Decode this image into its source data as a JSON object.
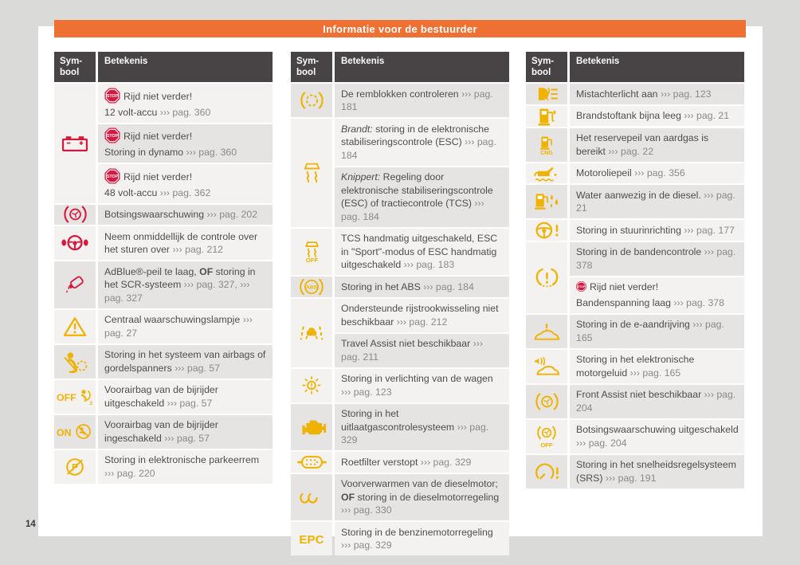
{
  "banner": {
    "title": "Informatie voor de bestuurder"
  },
  "page": {
    "number": "14"
  },
  "badges": {
    "stop": "STOP"
  },
  "colors": {
    "accent_orange": "#ee7033",
    "header_bg": "#484344",
    "warning_red": "#d5193e",
    "warning_yellow": "#efb200",
    "row_light": "#f4f2f1",
    "row_dark": "#e6e4e3"
  },
  "table_header": {
    "symbol_line1": "Sym-",
    "symbol_line2": "bool",
    "meaning": "Betekenis"
  },
  "tables": [
    {
      "sections": [
        {
          "icon": "battery-icon",
          "color": "red",
          "rows": [
            {
              "shade": "light",
              "lines": [
                [
                  {
                    "s": "stop"
                  },
                  {
                    "s": "n",
                    "t": "Rijd niet verder!"
                  }
                ],
                [
                  {
                    "s": "n",
                    "t": "12 volt-accu "
                  },
                  {
                    "s": "r",
                    "t": "››› pag. 360"
                  }
                ]
              ]
            },
            {
              "shade": "dark",
              "lines": [
                [
                  {
                    "s": "stop"
                  },
                  {
                    "s": "n",
                    "t": "Rijd niet verder!"
                  }
                ],
                [
                  {
                    "s": "n",
                    "t": "Storing in dynamo "
                  },
                  {
                    "s": "r",
                    "t": "››› pag. 360"
                  }
                ]
              ]
            },
            {
              "shade": "light",
              "lines": [
                [
                  {
                    "s": "stop"
                  },
                  {
                    "s": "n",
                    "t": "Rijd niet verder!"
                  }
                ],
                [
                  {
                    "s": "n",
                    "t": "48 volt-accu "
                  },
                  {
                    "s": "r",
                    "t": "››› pag. 362"
                  }
                ]
              ]
            }
          ]
        },
        {
          "icon": "collision-warning-icon",
          "color": "red",
          "rows": [
            {
              "shade": "dark",
              "lines": [
                [
                  {
                    "s": "n",
                    "t": "Botsingswaarschuwing "
                  },
                  {
                    "s": "r",
                    "t": "››› pag. 202"
                  }
                ]
              ]
            }
          ]
        },
        {
          "icon": "steering-takeover-icon",
          "color": "red",
          "rows": [
            {
              "shade": "light",
              "lines": [
                [
                  {
                    "s": "n",
                    "t": "Neem onmiddellijk de controle over het sturen over "
                  },
                  {
                    "s": "r",
                    "t": "››› pag. 212"
                  }
                ]
              ]
            }
          ]
        },
        {
          "icon": "adblue-icon",
          "color": "red",
          "rows": [
            {
              "shade": "dark",
              "lines": [
                [
                  {
                    "s": "n",
                    "t": "AdBlue®-peil te laag, "
                  },
                  {
                    "s": "b",
                    "t": "OF"
                  },
                  {
                    "s": "n",
                    "t": " storing in het SCR-systeem "
                  },
                  {
                    "s": "r",
                    "t": "››› pag. 327,"
                  },
                  {
                    "s": "n",
                    "t": " "
                  },
                  {
                    "s": "r",
                    "t": "››› pag. 327"
                  }
                ]
              ]
            }
          ]
        },
        {
          "icon": "warning-triangle-icon",
          "color": "yellow",
          "rows": [
            {
              "shade": "light",
              "lines": [
                [
                  {
                    "s": "n",
                    "t": "Centraal waarschuwingslampje "
                  },
                  {
                    "s": "r",
                    "t": "››› pag. 27"
                  }
                ]
              ]
            }
          ]
        },
        {
          "icon": "airbag-fault-icon",
          "color": "yellow",
          "rows": [
            {
              "shade": "dark",
              "lines": [
                [
                  {
                    "s": "n",
                    "t": "Storing in het systeem van airbags of gordelspanners "
                  },
                  {
                    "s": "r",
                    "t": "››› pag. 57"
                  }
                ]
              ]
            }
          ]
        },
        {
          "icon": "passenger-airbag-off-icon",
          "color": "yellow",
          "rows": [
            {
              "shade": "light",
              "lines": [
                [
                  {
                    "s": "n",
                    "t": "Voorairbag van de bijrijder uitgeschakeld "
                  },
                  {
                    "s": "r",
                    "t": "››› pag. 57"
                  }
                ]
              ]
            }
          ]
        },
        {
          "icon": "passenger-airbag-on-icon",
          "color": "yellow",
          "rows": [
            {
              "shade": "dark",
              "lines": [
                [
                  {
                    "s": "n",
                    "t": "Voorairbag van de bijrijder ingeschakeld "
                  },
                  {
                    "s": "r",
                    "t": "››› pag. 57"
                  }
                ]
              ]
            }
          ]
        },
        {
          "icon": "parking-brake-fault-icon",
          "color": "yellow",
          "rows": [
            {
              "shade": "light",
              "lines": [
                [
                  {
                    "s": "n",
                    "t": "Storing in elektronische parkeerrem "
                  },
                  {
                    "s": "r",
                    "t": "››› pag. 220"
                  }
                ]
              ]
            }
          ]
        }
      ]
    },
    {
      "sections": [
        {
          "icon": "brake-pads-icon",
          "color": "yellow",
          "rows": [
            {
              "shade": "dark",
              "lines": [
                [
                  {
                    "s": "n",
                    "t": "De remblokken controleren "
                  },
                  {
                    "s": "r",
                    "t": "››› pag. 181"
                  }
                ]
              ]
            }
          ]
        },
        {
          "icon": "esc-icon",
          "color": "yellow",
          "rows": [
            {
              "shade": "light",
              "lines": [
                [
                  {
                    "s": "i",
                    "t": "Brandt:"
                  },
                  {
                    "s": "n",
                    "t": " storing in de elektronische stabiliseringscontrole (ESC) "
                  },
                  {
                    "s": "r",
                    "t": "››› pag. 184"
                  }
                ]
              ]
            },
            {
              "shade": "dark",
              "lines": [
                [
                  {
                    "s": "i",
                    "t": "Knippert:"
                  },
                  {
                    "s": "n",
                    "t": " Regeling door elektronische stabiliseringscontrole (ESC) of tractiecontrole (TCS) "
                  },
                  {
                    "s": "r",
                    "t": "››› pag. 184"
                  }
                ]
              ]
            }
          ]
        },
        {
          "icon": "esc-off-icon",
          "color": "yellow",
          "rows": [
            {
              "shade": "light",
              "lines": [
                [
                  {
                    "s": "n",
                    "t": "TCS handmatig uitgeschakeld, ESC in \"Sport\"-modus of ESC handmatig uitgeschakeld "
                  },
                  {
                    "s": "r",
                    "t": "››› pag. 183"
                  }
                ]
              ]
            }
          ]
        },
        {
          "icon": "abs-icon",
          "color": "yellow",
          "rows": [
            {
              "shade": "dark",
              "lines": [
                [
                  {
                    "s": "n",
                    "t": "Storing in het ABS "
                  },
                  {
                    "s": "r",
                    "t": "››› pag. 184"
                  }
                ]
              ]
            }
          ]
        },
        {
          "icon": "lane-assist-icon",
          "color": "yellow",
          "rows": [
            {
              "shade": "light",
              "lines": [
                [
                  {
                    "s": "n",
                    "t": "Ondersteunde rijstrookwisseling niet beschikbaar "
                  },
                  {
                    "s": "r",
                    "t": "››› pag. 212"
                  }
                ]
              ]
            },
            {
              "shade": "dark",
              "lines": [
                [
                  {
                    "s": "n",
                    "t": "Travel Assist niet beschikbaar "
                  },
                  {
                    "s": "r",
                    "t": "››› pag. 211"
                  }
                ]
              ]
            }
          ]
        },
        {
          "icon": "light-fault-icon",
          "color": "yellow",
          "rows": [
            {
              "shade": "light",
              "lines": [
                [
                  {
                    "s": "n",
                    "t": "Storing in verlichting van de wagen "
                  },
                  {
                    "s": "r",
                    "t": "››› pag. 123"
                  }
                ]
              ]
            }
          ]
        },
        {
          "icon": "engine-icon",
          "color": "yellow",
          "rows": [
            {
              "shade": "dark",
              "lines": [
                [
                  {
                    "s": "n",
                    "t": "Storing in het uitlaatgascontrolesysteem "
                  },
                  {
                    "s": "r",
                    "t": "››› pag. 329"
                  }
                ]
              ]
            }
          ]
        },
        {
          "icon": "particulate-filter-icon",
          "color": "yellow",
          "rows": [
            {
              "shade": "light",
              "lines": [
                [
                  {
                    "s": "n",
                    "t": "Roetfilter verstopt "
                  },
                  {
                    "s": "r",
                    "t": "››› pag. 329"
                  }
                ]
              ]
            }
          ]
        },
        {
          "icon": "glow-plug-icon",
          "color": "yellow",
          "rows": [
            {
              "shade": "dark",
              "lines": [
                [
                  {
                    "s": "n",
                    "t": "Voorverwarmen van de dieselmotor; "
                  },
                  {
                    "s": "b",
                    "t": "OF"
                  },
                  {
                    "s": "n",
                    "t": " storing in de dieselmotorregeling "
                  },
                  {
                    "s": "r",
                    "t": "››› pag. 330"
                  }
                ]
              ]
            }
          ]
        },
        {
          "icon": "epc-icon",
          "color": "yellow",
          "rows": [
            {
              "shade": "light",
              "lines": [
                [
                  {
                    "s": "n",
                    "t": "Storing in de benzinemotorregeling "
                  },
                  {
                    "s": "r",
                    "t": "››› pag. 329"
                  }
                ]
              ]
            }
          ]
        }
      ]
    },
    {
      "sections": [
        {
          "icon": "rear-fog-icon",
          "color": "yellow",
          "rows": [
            {
              "shade": "dark",
              "lines": [
                [
                  {
                    "s": "n",
                    "t": "Mistachterlicht aan "
                  },
                  {
                    "s": "r",
                    "t": "››› pag. 123"
                  }
                ]
              ]
            }
          ]
        },
        {
          "icon": "fuel-pump-icon",
          "color": "yellow",
          "rows": [
            {
              "shade": "light",
              "lines": [
                [
                  {
                    "s": "n",
                    "t": "Brandstoftank bijna leeg "
                  },
                  {
                    "s": "r",
                    "t": "››› pag. 21"
                  }
                ]
              ]
            }
          ]
        },
        {
          "icon": "cng-reserve-icon",
          "color": "yellow",
          "rows": [
            {
              "shade": "dark",
              "lines": [
                [
                  {
                    "s": "n",
                    "t": "Het reservepeil van aardgas is bereikt "
                  },
                  {
                    "s": "r",
                    "t": "››› pag. 22"
                  }
                ]
              ]
            }
          ]
        },
        {
          "icon": "oil-level-icon",
          "color": "yellow",
          "rows": [
            {
              "shade": "light",
              "lines": [
                [
                  {
                    "s": "n",
                    "t": "Motoroliepeil "
                  },
                  {
                    "s": "r",
                    "t": "››› pag. 356"
                  }
                ]
              ]
            }
          ]
        },
        {
          "icon": "water-in-fuel-icon",
          "color": "yellow",
          "rows": [
            {
              "shade": "dark",
              "lines": [
                [
                  {
                    "s": "n",
                    "t": "Water aanwezig in de diesel. "
                  },
                  {
                    "s": "r",
                    "t": "››› pag. 21"
                  }
                ]
              ]
            }
          ]
        },
        {
          "icon": "steering-fault-icon",
          "color": "yellow",
          "rows": [
            {
              "shade": "light",
              "lines": [
                [
                  {
                    "s": "n",
                    "t": "Storing in stuurinrichting "
                  },
                  {
                    "s": "r",
                    "t": "››› pag. 177"
                  }
                ]
              ]
            }
          ]
        },
        {
          "icon": "tpms-icon",
          "color": "yellow",
          "rows": [
            {
              "shade": "dark",
              "lines": [
                [
                  {
                    "s": "n",
                    "t": "Storing in de bandencontrole "
                  },
                  {
                    "s": "r",
                    "t": "››› pag. 378"
                  }
                ]
              ]
            },
            {
              "shade": "light",
              "lines": [
                [
                  {
                    "s": "stopsm"
                  },
                  {
                    "s": "n",
                    "t": "Rijd niet verder!"
                  }
                ],
                [
                  {
                    "s": "n",
                    "t": "Bandenspanning laag "
                  },
                  {
                    "s": "r",
                    "t": "››› pag. 378"
                  }
                ]
              ]
            }
          ]
        },
        {
          "icon": "edrive-fault-icon",
          "color": "yellow",
          "rows": [
            {
              "shade": "dark",
              "lines": [
                [
                  {
                    "s": "n",
                    "t": "Storing in de e-aandrijving "
                  },
                  {
                    "s": "r",
                    "t": "››› pag. 165"
                  }
                ]
              ]
            }
          ]
        },
        {
          "icon": "motor-sound-icon",
          "color": "yellow",
          "rows": [
            {
              "shade": "light",
              "lines": [
                [
                  {
                    "s": "n",
                    "t": "Storing in het elektronische motorgeluid "
                  },
                  {
                    "s": "r",
                    "t": "››› pag. 165"
                  }
                ]
              ]
            }
          ]
        },
        {
          "icon": "front-assist-icon",
          "color": "yellow",
          "rows": [
            {
              "shade": "dark",
              "lines": [
                [
                  {
                    "s": "n",
                    "t": "Front Assist niet beschikbaar "
                  },
                  {
                    "s": "r",
                    "t": "››› pag. 204"
                  }
                ]
              ]
            }
          ]
        },
        {
          "icon": "collision-warning-off-icon",
          "color": "yellow",
          "rows": [
            {
              "shade": "light",
              "lines": [
                [
                  {
                    "s": "n",
                    "t": "Botsingswaarschuwing uitgeschakeld "
                  },
                  {
                    "s": "r",
                    "t": "››› pag. 204"
                  }
                ]
              ]
            }
          ]
        },
        {
          "icon": "cruise-control-fault-icon",
          "color": "yellow",
          "rows": [
            {
              "shade": "dark",
              "lines": [
                [
                  {
                    "s": "n",
                    "t": "Storing in het snelheidsregelsysteem (SRS) "
                  },
                  {
                    "s": "r",
                    "t": "››› pag. 191"
                  }
                ]
              ]
            }
          ]
        }
      ]
    }
  ]
}
